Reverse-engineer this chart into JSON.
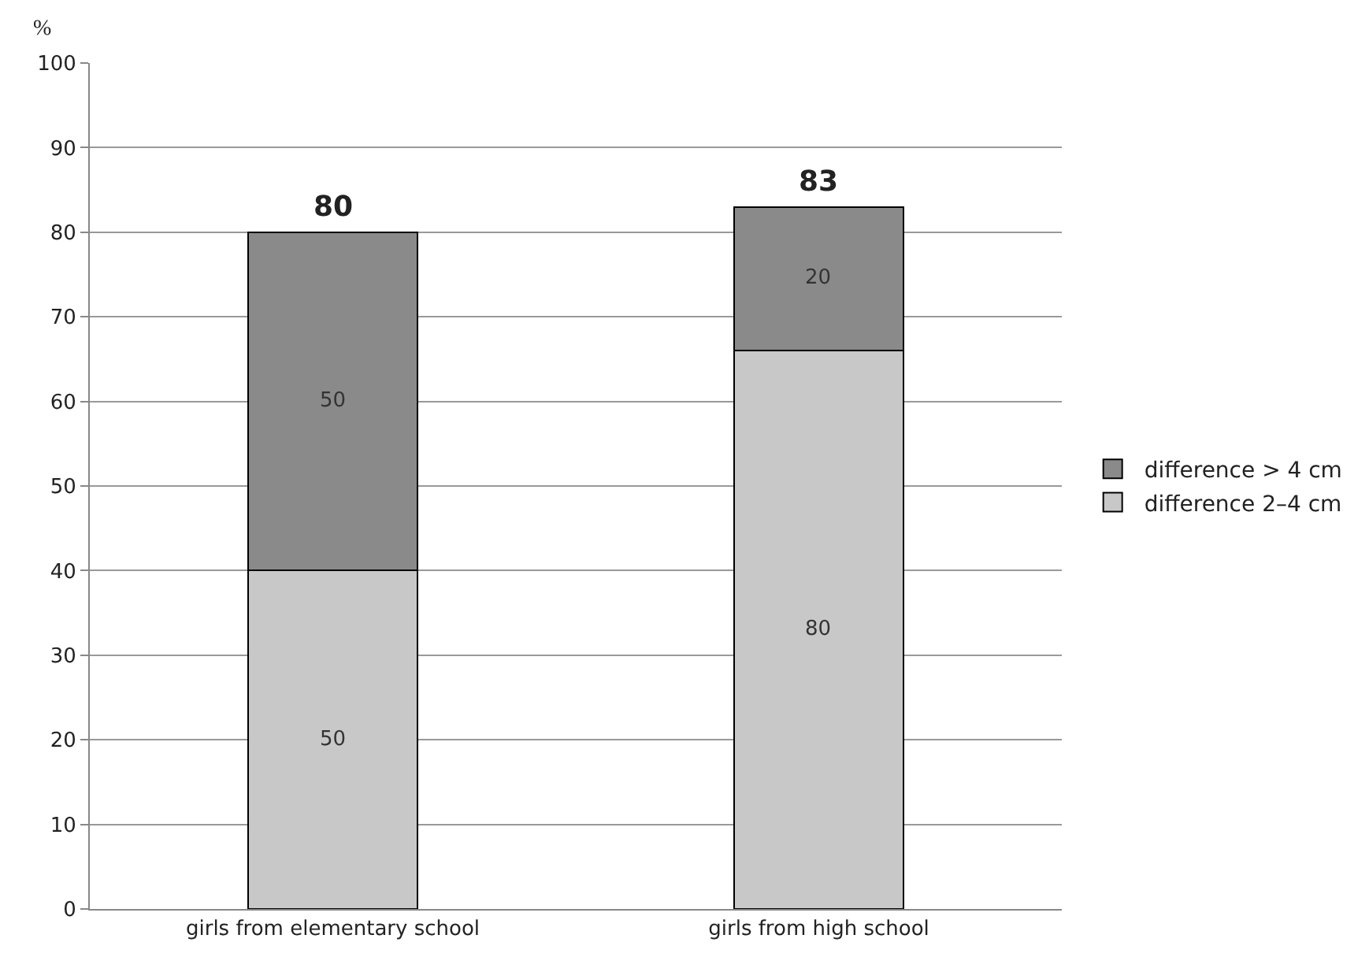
{
  "chart_data": {
    "type": "bar",
    "stacked": true,
    "ylabel": "%",
    "categories": [
      "girls from elementary school",
      "girls from high school"
    ],
    "series": [
      {
        "name": "difference 2–4 cm",
        "color": "#c8c8c8",
        "values": [
          40,
          66
        ]
      },
      {
        "name": "difference > 4 cm",
        "color": "#8a8a8a",
        "values": [
          40,
          17
        ]
      }
    ],
    "annotations": [
      "50",
      "50",
      "80",
      "20"
    ],
    "totals": [
      "80",
      "83"
    ],
    "ylim": [
      0,
      100
    ],
    "yticks": [
      0,
      10,
      20,
      30,
      40,
      50,
      60,
      70,
      80,
      90,
      100
    ],
    "grid": "y",
    "legend": "right"
  }
}
